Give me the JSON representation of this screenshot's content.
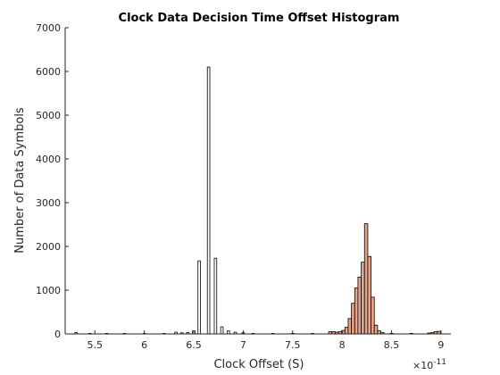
{
  "chart_data": {
    "type": "bar",
    "title": "Clock Data Decision Time Offset Histogram",
    "xlabel": "Clock Offset (S)",
    "ylabel": "Number of Data Symbols",
    "x_exponent": {
      "base": "×10",
      "power": "-11"
    },
    "xlim": [
      5.2,
      9.1
    ],
    "ylim": [
      0,
      7000
    ],
    "x_ticks": [
      5.5,
      6,
      6.5,
      7,
      7.5,
      8,
      8.5,
      9
    ],
    "x_tick_labels": [
      "5.5",
      "6",
      "6.5",
      "7",
      "7.5",
      "8",
      "8.5",
      "9"
    ],
    "y_ticks": [
      0,
      1000,
      2000,
      3000,
      4000,
      5000,
      6000,
      7000
    ],
    "y_tick_labels": [
      "0",
      "1000",
      "2000",
      "3000",
      "4000",
      "5000",
      "6000",
      "7000"
    ],
    "grid": false,
    "series": [
      {
        "color": "#ffffff",
        "bin_width": 0.025,
        "bins": [
          {
            "x": 5.31,
            "value": 30
          },
          {
            "x": 5.45,
            "value": 10
          },
          {
            "x": 5.62,
            "value": 8
          },
          {
            "x": 5.8,
            "value": 8
          },
          {
            "x": 6.0,
            "value": 8
          },
          {
            "x": 6.2,
            "value": 10
          },
          {
            "x": 6.32,
            "value": 40
          },
          {
            "x": 6.38,
            "value": 25
          },
          {
            "x": 6.44,
            "value": 30
          },
          {
            "x": 6.5,
            "value": 70
          },
          {
            "x": 6.555,
            "value": 1670
          },
          {
            "x": 6.65,
            "value": 6100
          },
          {
            "x": 6.72,
            "value": 1730
          },
          {
            "x": 6.785,
            "value": 160
          },
          {
            "x": 6.85,
            "value": 70
          },
          {
            "x": 6.92,
            "value": 40
          },
          {
            "x": 7.0,
            "value": 25
          },
          {
            "x": 7.1,
            "value": 12
          },
          {
            "x": 7.3,
            "value": 10
          },
          {
            "x": 7.5,
            "value": 8
          },
          {
            "x": 7.7,
            "value": 8
          }
        ]
      },
      {
        "color": "#e6a68c",
        "bin_width": 0.033,
        "bins": [
          {
            "x": 7.88,
            "value": 50
          },
          {
            "x": 7.913,
            "value": 50
          },
          {
            "x": 7.946,
            "value": 40
          },
          {
            "x": 7.979,
            "value": 50
          },
          {
            "x": 8.012,
            "value": 80
          },
          {
            "x": 8.045,
            "value": 150
          },
          {
            "x": 8.078,
            "value": 350
          },
          {
            "x": 8.111,
            "value": 700
          },
          {
            "x": 8.144,
            "value": 1050
          },
          {
            "x": 8.177,
            "value": 1300
          },
          {
            "x": 8.21,
            "value": 1640
          },
          {
            "x": 8.243,
            "value": 2520
          },
          {
            "x": 8.276,
            "value": 1770
          },
          {
            "x": 8.309,
            "value": 840
          },
          {
            "x": 8.342,
            "value": 200
          },
          {
            "x": 8.375,
            "value": 70
          },
          {
            "x": 8.408,
            "value": 30
          },
          {
            "x": 8.5,
            "value": 10
          },
          {
            "x": 8.7,
            "value": 8
          },
          {
            "x": 8.88,
            "value": 20
          },
          {
            "x": 8.913,
            "value": 30
          },
          {
            "x": 8.946,
            "value": 50
          },
          {
            "x": 8.979,
            "value": 60
          }
        ]
      }
    ]
  }
}
